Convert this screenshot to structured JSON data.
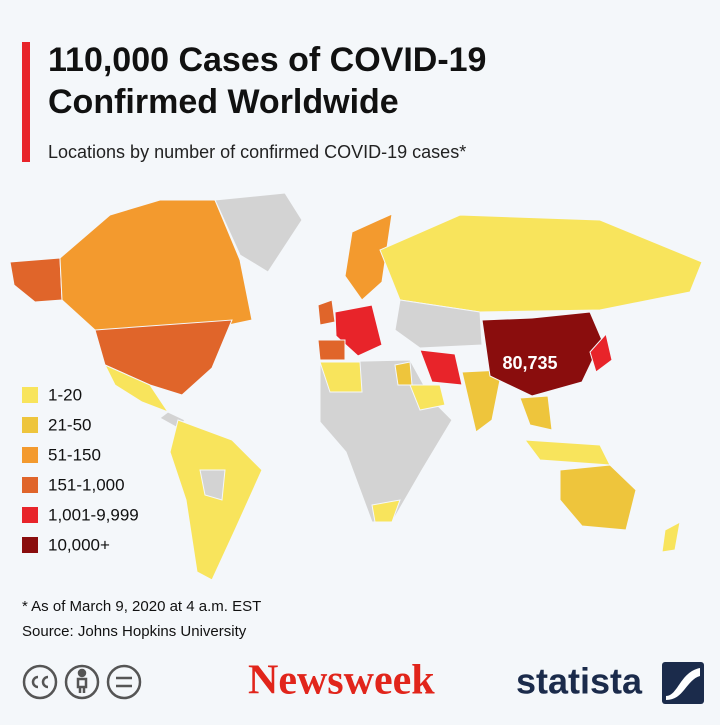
{
  "header": {
    "title_lines": [
      "110,000 Cases of COVID-19",
      "Confirmed Worldwide"
    ],
    "subtitle": "Locations by number of confirmed COVID-19 cases*"
  },
  "map": {
    "annotation": "80,735"
  },
  "legend": {
    "items": [
      {
        "label": "1-20",
        "color": "#f8e45c"
      },
      {
        "label": "21-50",
        "color": "#eec53c"
      },
      {
        "label": "51-150",
        "color": "#f39a2e"
      },
      {
        "label": "151-1,000",
        "color": "#e0652a"
      },
      {
        "label": "1,001-9,999",
        "color": "#e8242a"
      },
      {
        "label": "10,000+",
        "color": "#8a0d0d"
      }
    ]
  },
  "footer": {
    "note": "* As of March 9, 2020 at 4 a.m. EST",
    "source": "Source: Johns Hopkins University",
    "brands": [
      "Newsweek",
      "statista"
    ]
  }
}
